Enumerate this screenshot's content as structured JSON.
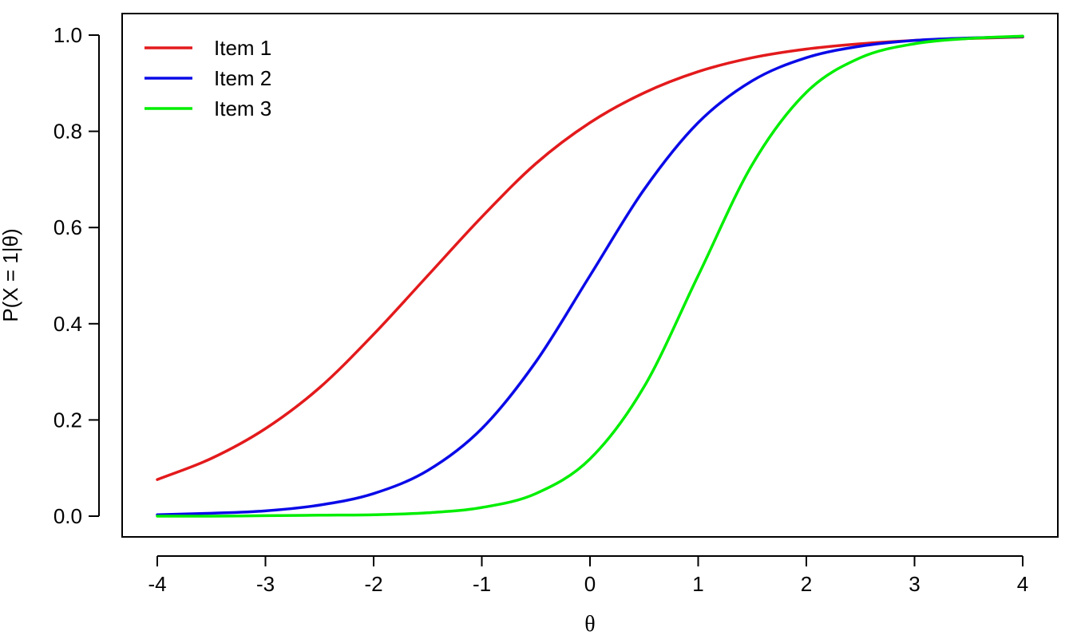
{
  "chart_data": {
    "type": "line",
    "title": "",
    "xlabel": "θ",
    "ylabel": "P(X = 1|θ)",
    "xlim": [
      -4,
      4
    ],
    "ylim": [
      0,
      1
    ],
    "x_ticks": [
      -4,
      -3,
      -2,
      -1,
      0,
      1,
      2,
      3,
      4
    ],
    "x_tick_labels": [
      "-4",
      "-3",
      "-2",
      "-1",
      "0",
      "1",
      "2",
      "3",
      "4"
    ],
    "y_ticks": [
      0,
      0.2,
      0.4,
      0.6,
      0.8,
      1
    ],
    "y_tick_labels": [
      "0.0",
      "0.2",
      "0.4",
      "0.6",
      "0.8",
      "1.0"
    ],
    "grid": false,
    "legend_position": "top-left",
    "x": [
      -4,
      -3.5,
      -3,
      -2.5,
      -2,
      -1.5,
      -1,
      -0.5,
      0,
      0.5,
      1,
      1.5,
      2,
      2.5,
      3,
      3.5,
      4
    ],
    "series": [
      {
        "name": "Item 1",
        "color": "#e31a1c",
        "values": [
          0.076,
          0.12,
          0.182,
          0.267,
          0.378,
          0.5,
          0.622,
          0.733,
          0.818,
          0.88,
          0.924,
          0.953,
          0.971,
          0.982,
          0.989,
          0.993,
          0.996
        ]
      },
      {
        "name": "Item 2",
        "color": "#0a0ae8",
        "values": [
          0.003,
          0.006,
          0.011,
          0.023,
          0.047,
          0.095,
          0.182,
          0.321,
          0.5,
          0.679,
          0.818,
          0.905,
          0.953,
          0.977,
          0.989,
          0.994,
          0.997
        ]
      },
      {
        "name": "Item 3",
        "color": "#00ee00",
        "values": [
          0.0,
          0.0,
          0.001,
          0.002,
          0.003,
          0.007,
          0.018,
          0.047,
          0.119,
          0.269,
          0.5,
          0.731,
          0.881,
          0.953,
          0.982,
          0.993,
          0.998
        ]
      }
    ]
  }
}
